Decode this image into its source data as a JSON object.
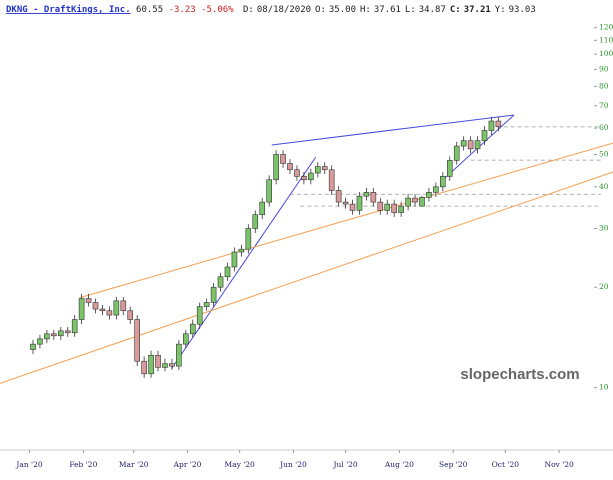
{
  "chart_data": {
    "type": "candlestick",
    "header": {
      "symbol": "DKNG - DraftKings, Inc.",
      "last": "60.55",
      "change": "-3.23",
      "change_pct": "-5.06%",
      "fields": [
        {
          "label": "D:",
          "value": "08/18/2020"
        },
        {
          "label": "O:",
          "value": "35.00"
        },
        {
          "label": "H:",
          "value": "37.61"
        },
        {
          "label": "L:",
          "value": "34.87"
        },
        {
          "label": "C:",
          "value": "37.21"
        },
        {
          "label": "Y:",
          "value": "93.03"
        }
      ]
    },
    "watermark": "slopecharts.com",
    "log_y": true,
    "up_color": "#7cc46a",
    "down_color": "#d99a9a",
    "x": [
      2,
      6,
      10,
      14,
      18,
      22,
      26,
      30,
      34,
      38,
      42,
      46,
      50,
      54,
      58,
      62,
      66,
      70,
      74,
      78,
      82,
      86,
      90,
      94,
      98,
      102,
      106,
      110,
      114,
      118,
      122,
      126,
      130,
      134,
      138,
      142,
      146,
      150,
      154,
      158,
      162,
      166,
      170,
      174,
      178,
      182,
      186,
      190,
      194,
      198,
      202,
      206,
      210,
      214,
      218,
      222,
      226,
      230,
      234,
      238,
      242,
      246,
      250,
      254,
      258,
      262,
      266,
      270
    ],
    "open": [
      13.0,
      13.5,
      14.0,
      14.5,
      14.3,
      14.8,
      14.6,
      16.0,
      18.5,
      18.0,
      17.2,
      17.0,
      16.5,
      18.2,
      17.0,
      16.0,
      12.0,
      11.0,
      12.5,
      11.5,
      11.8,
      11.6,
      13.5,
      14.5,
      15.5,
      17.5,
      18.0,
      20.0,
      21.5,
      23.0,
      25.5,
      26.0,
      30.0,
      33.0,
      36.0,
      42.0,
      50.0,
      47.0,
      45.0,
      43.0,
      42.0,
      44.0,
      46.0,
      45.0,
      39.0,
      36.0,
      35.5,
      34.0,
      37.5,
      38.5,
      36.0,
      34.0,
      35.5,
      33.5,
      35.0,
      37.0,
      35.0,
      37.21,
      38.5,
      40.0,
      43.0,
      48.0,
      53.0,
      55.0,
      52.0,
      55.0,
      59.0,
      63.0
    ],
    "high": [
      13.9,
      14.4,
      14.9,
      14.9,
      15.2,
      15.2,
      16.5,
      19.1,
      19.1,
      18.5,
      17.7,
      17.5,
      18.7,
      18.7,
      17.5,
      16.5,
      12.4,
      12.9,
      12.9,
      12.2,
      12.2,
      13.9,
      14.9,
      16.0,
      18.0,
      18.5,
      20.6,
      22.1,
      23.7,
      26.3,
      26.8,
      30.9,
      34.0,
      37.1,
      43.3,
      51.5,
      51.5,
      48.4,
      46.4,
      44.3,
      45.3,
      47.4,
      47.4,
      46.4,
      40.2,
      37.1,
      36.6,
      38.6,
      39.7,
      39.7,
      37.1,
      36.6,
      36.6,
      36.1,
      38.1,
      38.1,
      37.61,
      39.7,
      41.2,
      44.3,
      49.4,
      54.6,
      56.7,
      56.7,
      56.7,
      60.8,
      64.9,
      64.9
    ],
    "low": [
      12.6,
      13.1,
      13.6,
      13.9,
      13.9,
      14.2,
      14.2,
      15.5,
      17.5,
      16.7,
      16.5,
      16.0,
      16.0,
      16.5,
      15.5,
      11.6,
      10.7,
      10.7,
      11.2,
      11.2,
      11.3,
      11.3,
      13.1,
      14.1,
      15.0,
      17.0,
      17.5,
      19.4,
      20.9,
      22.3,
      24.7,
      25.2,
      29.1,
      32.0,
      34.9,
      40.7,
      45.6,
      43.7,
      41.7,
      40.7,
      40.7,
      42.7,
      43.7,
      37.8,
      34.9,
      34.4,
      33.0,
      33.0,
      36.4,
      34.9,
      33.0,
      33.0,
      32.5,
      32.5,
      34.0,
      34.9,
      34.87,
      36.1,
      37.3,
      38.8,
      41.7,
      46.6,
      51.4,
      50.4,
      50.4,
      53.4,
      57.2,
      58.7
    ],
    "close": [
      13.5,
      14.0,
      14.5,
      14.3,
      14.8,
      14.6,
      16.0,
      18.5,
      18.0,
      17.2,
      17.0,
      16.5,
      18.2,
      17.0,
      16.0,
      12.0,
      11.0,
      12.5,
      11.5,
      11.8,
      11.6,
      13.5,
      14.5,
      15.5,
      17.5,
      18.0,
      20.0,
      21.5,
      23.0,
      25.5,
      26.0,
      30.0,
      33.0,
      36.0,
      42.0,
      50.0,
      47.0,
      45.0,
      43.0,
      42.0,
      44.0,
      46.0,
      45.0,
      39.0,
      36.0,
      35.5,
      34.0,
      37.5,
      38.5,
      36.0,
      34.0,
      35.5,
      33.5,
      35.0,
      37.0,
      36.0,
      37.21,
      38.5,
      40.0,
      43.0,
      48.0,
      53.0,
      55.0,
      52.0,
      55.0,
      59.0,
      63.0,
      60.55
    ],
    "xlim": [
      -17,
      336
    ],
    "ylim": [
      6.5,
      131
    ],
    "xticks": [
      {
        "value": 0,
        "label": "Jan '20"
      },
      {
        "value": 31,
        "label": "Feb '20"
      },
      {
        "value": 60,
        "label": "Mar '20"
      },
      {
        "value": 91,
        "label": "Apr '20"
      },
      {
        "value": 121,
        "label": "May '20"
      },
      {
        "value": 152,
        "label": "Jun '20"
      },
      {
        "value": 182,
        "label": "Jul '20"
      },
      {
        "value": 213,
        "label": "Aug '20"
      },
      {
        "value": 244,
        "label": "Sep '20"
      },
      {
        "value": 274,
        "label": "Oct '20"
      },
      {
        "value": 305,
        "label": "Nov '20"
      }
    ],
    "yticks": [
      10,
      20,
      30,
      40,
      50,
      60,
      70,
      80,
      90,
      100,
      110,
      120
    ],
    "trendlines": [
      {
        "color": "#4a4adf",
        "x": [
          81.8,
          164.8
        ],
        "y": [
          11.4,
          49.1
        ]
      },
      {
        "color": "#4a4adf",
        "x": [
          139.5,
          279
        ],
        "y": [
          53.4,
          65.7
        ]
      },
      {
        "color": "#4a4adf",
        "x": [
          239.2,
          279
        ],
        "y": [
          42.5,
          65.7
        ]
      },
      {
        "color": "#f5a050",
        "x": [
          28.8,
          336
        ],
        "y": [
          18.6,
          54.1
        ]
      },
      {
        "color": "#f5a050",
        "x": [
          -17,
          336
        ],
        "y": [
          10.3,
          44.3
        ]
      }
    ],
    "levels": [
      {
        "y": 60.5,
        "x": [
          265,
          329
        ]
      },
      {
        "y": 48.1,
        "x": [
          254,
          329
        ]
      },
      {
        "y": 38.0,
        "x": [
          150,
          329
        ]
      },
      {
        "y": 35.0,
        "x": [
          156,
          329
        ]
      }
    ]
  }
}
